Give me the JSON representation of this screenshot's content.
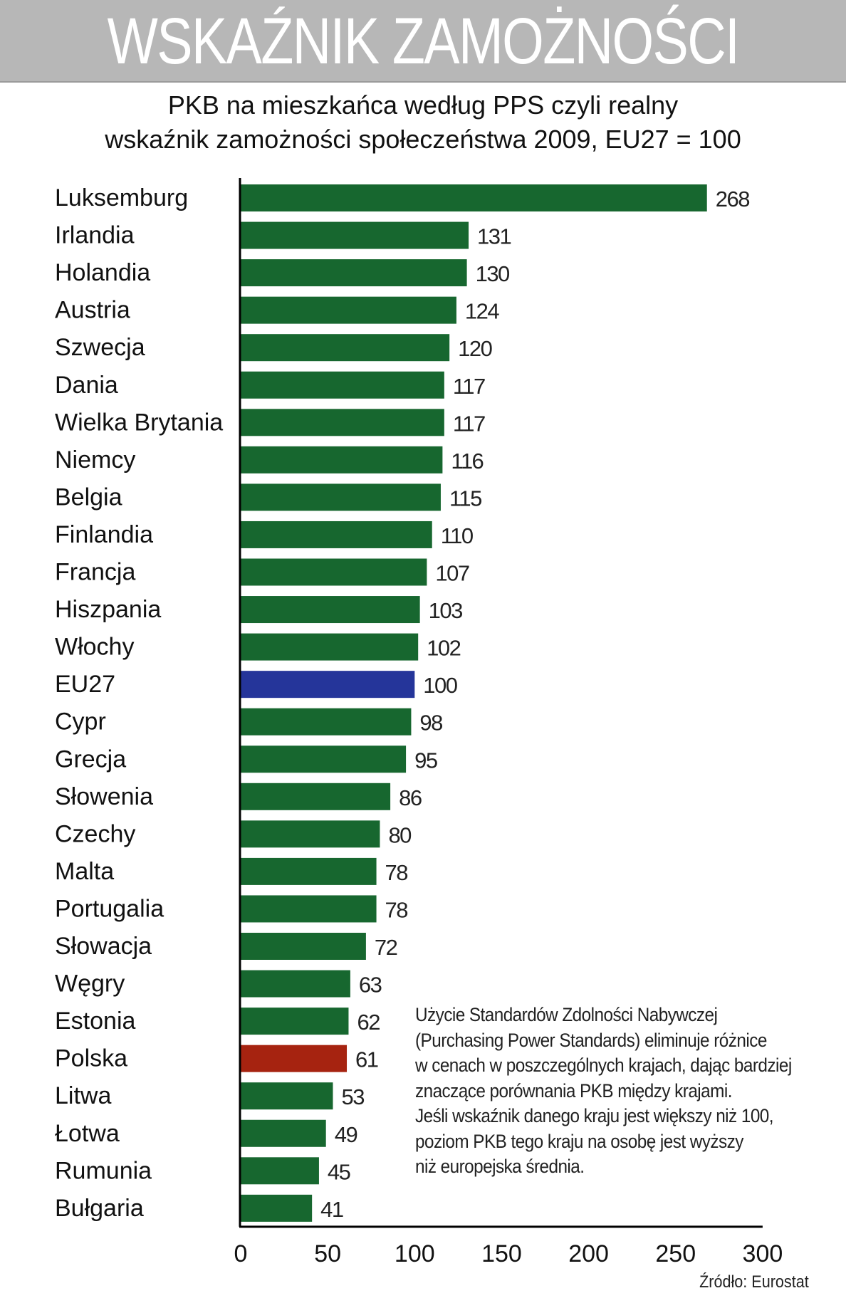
{
  "header": {
    "title": "WSKAŹNIK ZAMOŻNOŚCI",
    "subtitle_line1": "PKB na mieszkańca według PPS czyli realny",
    "subtitle_line2": "wskaźnik zamożności społeczeństwa 2009, EU27 = 100"
  },
  "colors": {
    "default_bar": "#17672f",
    "eu_bar": "#25359a",
    "poland_bar": "#a62310",
    "title_bg": "#b7b7b7"
  },
  "chart_data": {
    "type": "bar",
    "orientation": "horizontal",
    "title": "PKB na mieszkańca według PPS czyli realny wskaźnik zamożności społeczeństwa 2009, EU27 = 100",
    "xlabel": "",
    "ylabel": "",
    "xlim": [
      0,
      300
    ],
    "xticks": [
      0,
      50,
      100,
      150,
      200,
      250,
      300
    ],
    "grid": false,
    "categories": [
      "Luksemburg",
      "Irlandia",
      "Holandia",
      "Austria",
      "Szwecja",
      "Dania",
      "Wielka Brytania",
      "Niemcy",
      "Belgia",
      "Finlandia",
      "Francja",
      "Hiszpania",
      "Włochy",
      "EU27",
      "Cypr",
      "Grecja",
      "Słowenia",
      "Czechy",
      "Malta",
      "Portugalia",
      "Słowacja",
      "Węgry",
      "Estonia",
      "Polska",
      "Litwa",
      "Łotwa",
      "Rumunia",
      "Bułgaria"
    ],
    "values": [
      268,
      131,
      130,
      124,
      120,
      117,
      117,
      116,
      115,
      110,
      107,
      103,
      102,
      100,
      98,
      95,
      86,
      80,
      78,
      78,
      72,
      63,
      62,
      61,
      53,
      49,
      45,
      41
    ],
    "highlight": {
      "EU27": "eu",
      "Polska": "poland"
    }
  },
  "note": {
    "lines": [
      "Użycie Standardów Zdolności Nabywczej",
      "(Purchasing Power Standards) eliminuje różnice",
      "w cenach w poszczególnych krajach, dając bardziej",
      "znaczące porównania PKB między krajami.",
      "Jeśli wskaźnik danego kraju jest większy niż 100,",
      "poziom PKB tego kraju na osobę jest wyższy",
      "niż europejska średnia."
    ]
  },
  "source": "Źródło: Eurostat"
}
